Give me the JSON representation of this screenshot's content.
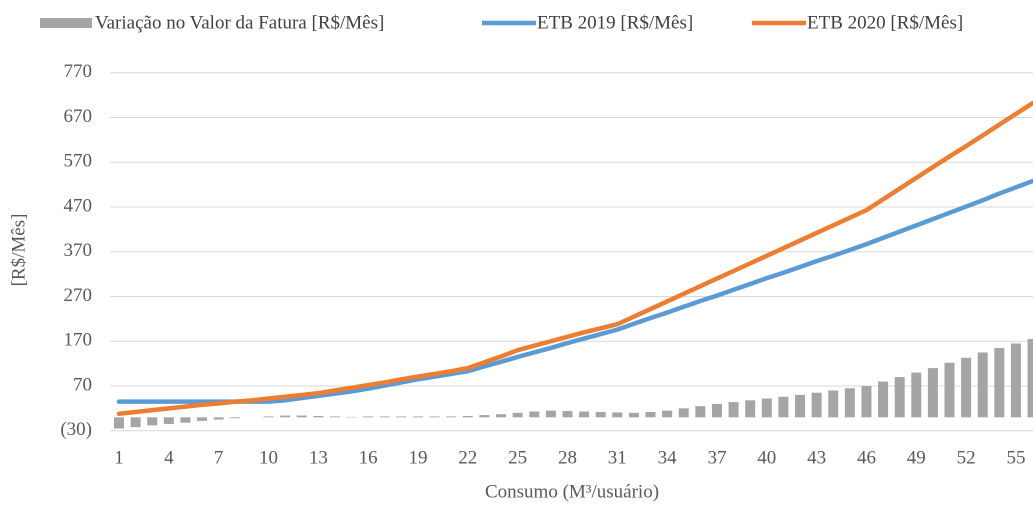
{
  "chart_data": {
    "type": "bar-line",
    "ylabel": "[R$/Mês]",
    "xlabel": "Consumo (M³/usuário)",
    "categories": [
      "1",
      null,
      null,
      "4",
      null,
      null,
      "7",
      null,
      null,
      "10",
      null,
      null,
      "13",
      null,
      null,
      "16",
      null,
      null,
      "19",
      null,
      null,
      "22",
      null,
      null,
      "25",
      null,
      null,
      "28",
      null,
      null,
      "31",
      null,
      null,
      "34",
      null,
      null,
      "37",
      null,
      null,
      "40",
      null,
      null,
      "43",
      null,
      null,
      "46",
      null,
      null,
      "49",
      null,
      null,
      "52",
      null,
      null,
      "55",
      null
    ],
    "series": [
      {
        "name": "Variação no Valor da Fatura [R$/Mês]",
        "type": "bar",
        "color": "#a5a5a5",
        "values": [
          -25,
          -22,
          -18,
          -15,
          -12,
          -8,
          -5,
          -2,
          0,
          2,
          4,
          4,
          3,
          2,
          1,
          2,
          2,
          2,
          2,
          2,
          2,
          3,
          5,
          7,
          10,
          13,
          15,
          14,
          13,
          12,
          11,
          10,
          12,
          15,
          20,
          25,
          30,
          34,
          38,
          42,
          46,
          50,
          55,
          60,
          65,
          70,
          80,
          90,
          100,
          110,
          122,
          133,
          145,
          155,
          165,
          175
        ]
      },
      {
        "name": "ETB 2019  [R$/Mês]",
        "type": "line",
        "color": "#5b9bd5",
        "values": [
          35,
          35,
          35,
          35,
          35,
          35,
          35,
          35,
          35,
          35,
          38,
          43,
          48,
          53,
          58,
          64,
          71,
          78,
          85,
          91,
          97,
          103,
          114,
          124,
          135,
          145,
          155,
          166,
          176,
          186,
          196,
          209,
          222,
          234,
          247,
          260,
          272,
          285,
          298,
          311,
          323,
          336,
          349,
          361,
          374,
          387,
          401,
          415,
          429,
          443,
          457,
          471,
          485,
          500,
          514,
          528
        ]
      },
      {
        "name": "ETB 2020  [R$/Mês]",
        "type": "line",
        "color": "#ed7d31",
        "values": [
          8,
          12,
          16,
          20,
          24,
          28,
          31,
          35,
          38,
          42,
          46,
          50,
          54,
          60,
          66,
          72,
          78,
          85,
          91,
          97,
          103,
          110,
          123,
          136,
          150,
          160,
          170,
          180,
          190,
          199,
          208,
          225,
          242,
          259,
          276,
          293,
          310,
          327,
          344,
          361,
          378,
          395,
          412,
          429,
          446,
          463,
          487,
          511,
          535,
          559,
          583,
          606,
          630,
          654,
          678,
          702
        ]
      }
    ],
    "ylim": [
      -30,
      800
    ],
    "yticks": [
      {
        "value": -30,
        "label": "(30)"
      },
      70,
      170,
      270,
      370,
      470,
      570,
      670,
      770
    ],
    "grid": true
  }
}
